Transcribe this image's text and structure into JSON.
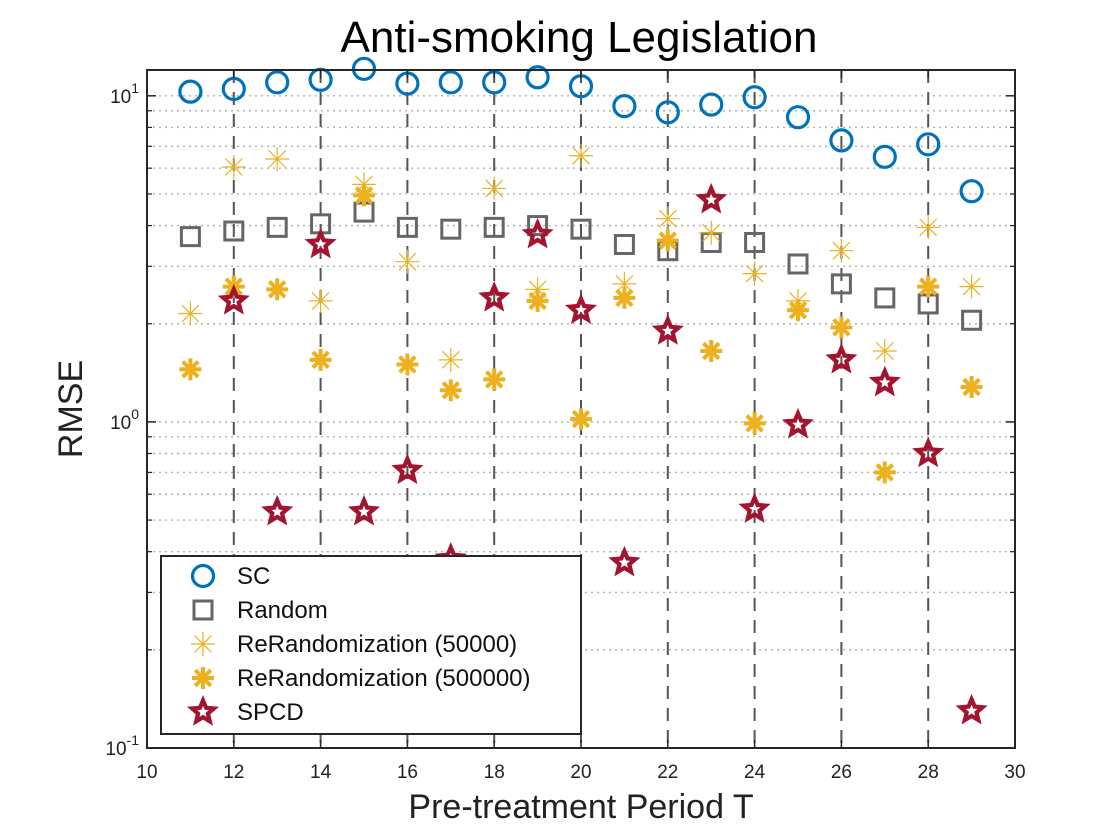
{
  "chart_data": {
    "type": "scatter",
    "title": "Anti-smoking Legislation",
    "xlabel": "Pre-treatment Period T",
    "ylabel": "RMSE",
    "xlim": [
      10,
      30
    ],
    "ylim": [
      0.1,
      12
    ],
    "yscale": "log",
    "xticks": [
      "10",
      "12",
      "14",
      "16",
      "18",
      "20",
      "22",
      "24",
      "26",
      "28",
      "30"
    ],
    "yticks": [
      {
        "value": 0.1,
        "base": "10",
        "exp": "-1"
      },
      {
        "value": 1,
        "base": "10",
        "exp": "0"
      },
      {
        "value": 10,
        "base": "10",
        "exp": "1"
      }
    ],
    "grid": "dotted horizontal minor, dashed vertical at even T",
    "legend_position": "bottom-left",
    "series": [
      {
        "name": "SC",
        "marker": "circle",
        "color": "#0072BD",
        "x": [
          11,
          12,
          13,
          14,
          15,
          16,
          17,
          18,
          19,
          20,
          21,
          22,
          23,
          24,
          25,
          26,
          27,
          28,
          29
        ],
        "y": [
          10.3,
          10.5,
          11.0,
          11.2,
          12.1,
          10.9,
          11.0,
          11.0,
          11.4,
          10.7,
          9.3,
          8.9,
          9.4,
          9.9,
          8.6,
          7.3,
          6.5,
          7.1,
          5.1
        ]
      },
      {
        "name": "Random",
        "marker": "square",
        "color": "#666666",
        "x": [
          11,
          12,
          13,
          14,
          15,
          16,
          17,
          18,
          19,
          20,
          21,
          22,
          23,
          24,
          25,
          26,
          27,
          28,
          29
        ],
        "y": [
          3.7,
          3.85,
          3.95,
          4.05,
          4.4,
          3.95,
          3.9,
          3.95,
          4.0,
          3.9,
          3.5,
          3.35,
          3.55,
          3.55,
          3.05,
          2.65,
          2.4,
          2.3,
          2.05
        ]
      },
      {
        "name": "ReRandomization (50000)",
        "marker": "asterisk-thin",
        "color": "#EDB120",
        "x": [
          11,
          12,
          13,
          14,
          15,
          16,
          17,
          18,
          19,
          20,
          21,
          22,
          23,
          24,
          25,
          26,
          27,
          28,
          29
        ],
        "y": [
          2.15,
          6.05,
          6.4,
          2.35,
          5.35,
          3.1,
          1.55,
          5.2,
          2.55,
          6.55,
          2.65,
          4.2,
          3.8,
          2.85,
          2.35,
          3.35,
          1.65,
          3.95,
          2.6
        ]
      },
      {
        "name": "ReRandomization (500000)",
        "marker": "asterisk-bold",
        "color": "#EDB120",
        "x": [
          11,
          12,
          13,
          14,
          15,
          16,
          17,
          18,
          19,
          20,
          21,
          22,
          23,
          24,
          25,
          26,
          27,
          28,
          29
        ],
        "y": [
          1.45,
          2.6,
          2.55,
          1.55,
          4.95,
          1.5,
          1.25,
          1.35,
          2.35,
          1.02,
          2.4,
          3.6,
          1.65,
          0.99,
          2.2,
          1.95,
          0.7,
          2.6,
          1.28
        ]
      },
      {
        "name": "SPCD",
        "marker": "star",
        "color": "#A2142F",
        "x": [
          12,
          13,
          14,
          15,
          16,
          17,
          18,
          19,
          20,
          21,
          22,
          23,
          24,
          25,
          26,
          27,
          28,
          29
        ],
        "y": [
          2.35,
          0.53,
          3.5,
          0.53,
          0.71,
          0.38,
          2.4,
          3.75,
          2.2,
          0.37,
          1.9,
          4.8,
          0.54,
          0.98,
          1.55,
          1.32,
          0.8,
          0.13
        ]
      }
    ]
  }
}
